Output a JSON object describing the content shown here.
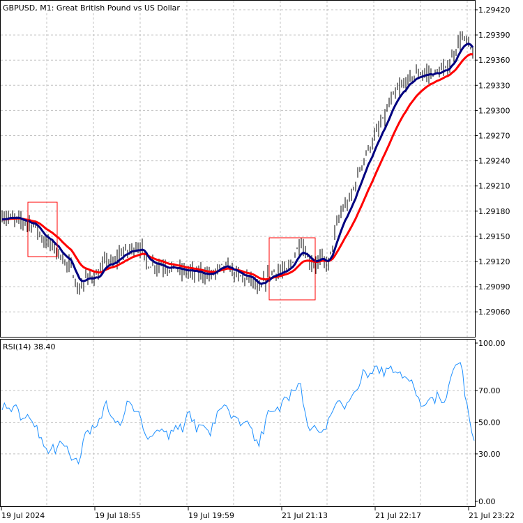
{
  "chart_data": [
    {
      "type": "candlestick",
      "title": "GBPUSD, M1:  Great British Pound vs US Dollar",
      "symbol": "GBPUSD",
      "timeframe": "M1",
      "x_tick_labels": [
        "19 Jul 2024",
        "19 Jul 18:55",
        "19 Jul 19:59",
        "21 Jul 21:13",
        "21 Jul 22:17",
        "21 Jul 23:22"
      ],
      "y_tick_labels": [
        "1.29420",
        "1.29390",
        "1.29360",
        "1.29330",
        "1.29300",
        "1.29270",
        "1.29240",
        "1.29210",
        "1.29180",
        "1.29150",
        "1.29120",
        "1.29090",
        "1.29060"
      ],
      "ylim": [
        1.2904,
        1.29432
      ],
      "grid": true,
      "close_approx": [
        1.29174,
        1.29172,
        1.2917,
        1.29168,
        1.29166,
        1.2916,
        1.29145,
        1.2914,
        1.29132,
        1.2912,
        1.29112,
        1.29083,
        1.29099,
        1.29103,
        1.29103,
        1.29124,
        1.29116,
        1.2913,
        1.29132,
        1.29137,
        1.29137,
        1.29116,
        1.29116,
        1.29116,
        1.29112,
        1.29112,
        1.29108,
        1.29108,
        1.29106,
        1.29106,
        1.29103,
        1.2911,
        1.29116,
        1.2911,
        1.29103,
        1.291,
        1.29099,
        1.29083,
        1.29099,
        1.29108,
        1.29108,
        1.29108,
        1.29124,
        1.29145,
        1.29124,
        1.29116,
        1.29124,
        1.29116,
        1.29157,
        1.29182,
        1.29191,
        1.29216,
        1.29241,
        1.29257,
        1.29274,
        1.2929,
        1.29311,
        1.29324,
        1.29332,
        1.2934,
        1.29344,
        1.29344,
        1.29344,
        1.29346,
        1.29349,
        1.29365,
        1.29386,
        1.29382,
        1.29365
      ],
      "moving_averages": [
        {
          "color": "#000080",
          "kind": "fast"
        },
        {
          "color": "#ff0000",
          "kind": "slow"
        }
      ],
      "bar_color": "#000000"
    },
    {
      "type": "line",
      "title": "RSI(14) 38.40",
      "indicator": "RSI(14)",
      "current_value": "38.40",
      "y_tick_labels": [
        "100.00",
        "70.00",
        "50.00",
        "30.00",
        "0.00"
      ],
      "ylim": [
        0,
        100
      ],
      "color": "#1e90ff",
      "values": [
        57.7,
        59,
        61,
        52.4,
        52.4,
        48,
        34.8,
        32.6,
        34.8,
        34.8,
        26,
        23.8,
        43.6,
        48,
        52.4,
        63.4,
        52.4,
        48,
        63.4,
        56.8,
        52.4,
        39.2,
        43.6,
        45.8,
        39.2,
        48,
        43.6,
        56.8,
        43.6,
        48,
        41.4,
        56.8,
        61,
        52.4,
        52.4,
        50.2,
        45.8,
        34.8,
        52.4,
        56.8,
        56.8,
        65.6,
        70,
        74.4,
        48,
        48,
        43.6,
        52.4,
        61,
        61,
        63.4,
        70,
        83.3,
        81,
        85.5,
        78.9,
        85.5,
        81,
        78.9,
        76.7,
        65.6,
        61,
        65.6,
        65.6,
        65.6,
        83.3,
        87.7,
        61,
        38.4
      ]
    }
  ]
}
